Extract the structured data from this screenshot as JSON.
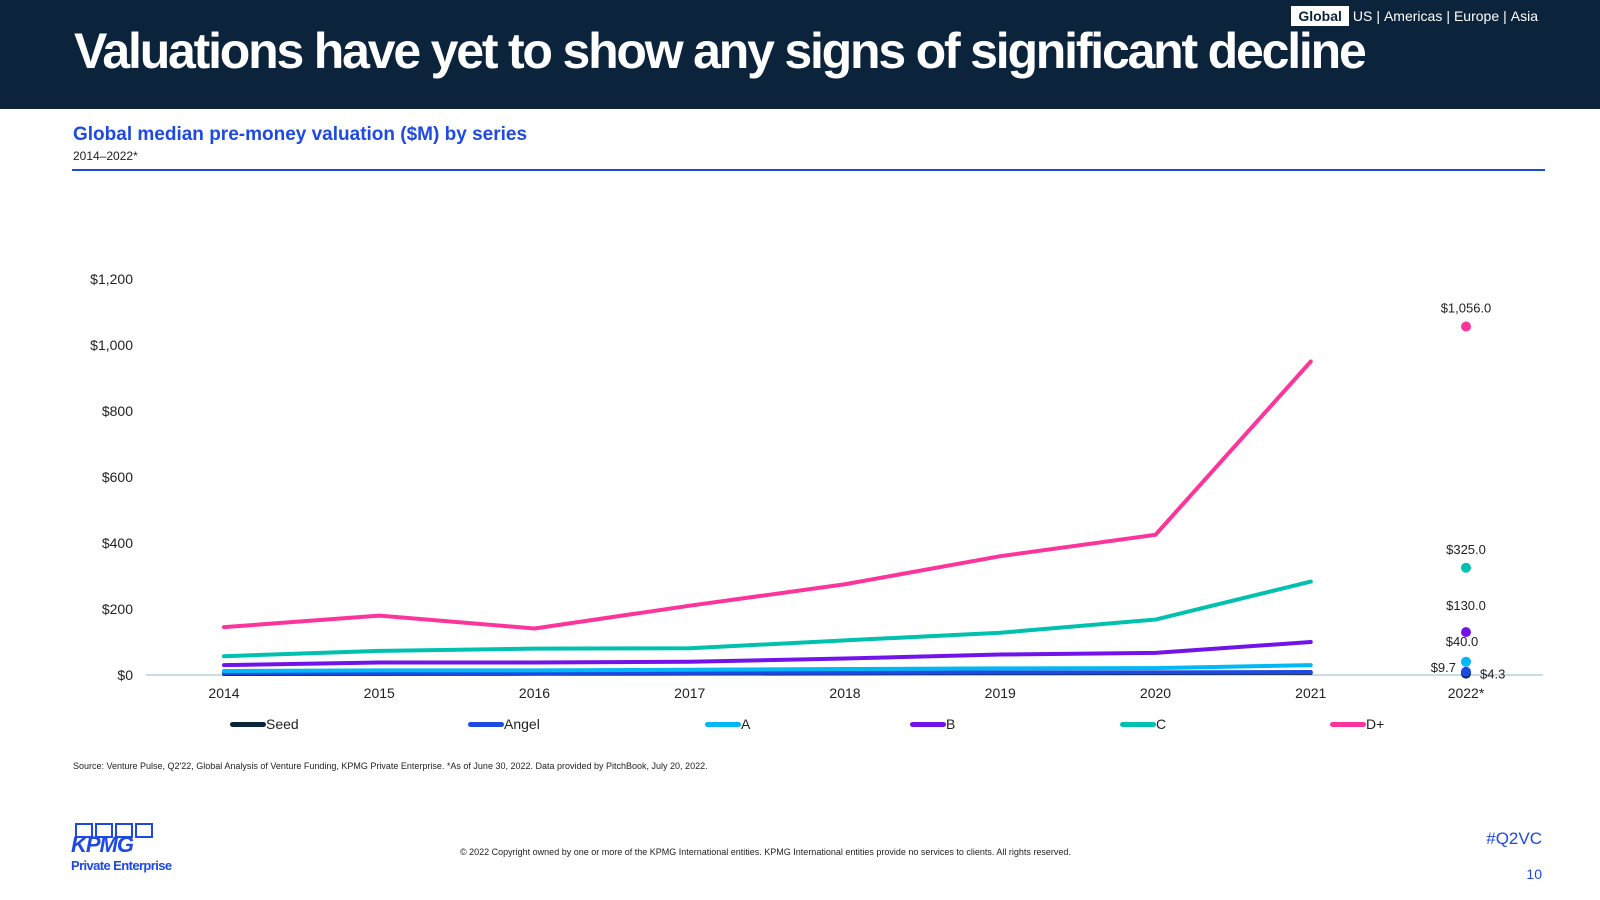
{
  "header": {
    "title": "Valuations have yet to show any signs of significant decline",
    "regions": {
      "selected": "Global",
      "others": [
        "US",
        "Americas",
        "Europe",
        "Asia"
      ],
      "separator": "|"
    }
  },
  "chart_header": {
    "title": "Global median pre-money valuation ($M) by series",
    "subtitle": "2014–2022*"
  },
  "chart_data": {
    "type": "line",
    "title": "Global median pre-money valuation ($M) by series",
    "subtitle": "2014–2022*",
    "categories": [
      "2014",
      "2015",
      "2016",
      "2017",
      "2018",
      "2019",
      "2020",
      "2021",
      "2022*"
    ],
    "ylim": [
      0,
      1200
    ],
    "yticks": [
      0,
      200,
      400,
      600,
      800,
      1000,
      1200
    ],
    "ytick_labels": [
      "$0",
      "$200",
      "$400",
      "$600",
      "$800",
      "$1,000",
      "$1,200"
    ],
    "grid": false,
    "legend_position": "bottom",
    "series": [
      {
        "name": "Seed",
        "color": "#0c233c",
        "values": [
          3,
          3.5,
          4,
          4.5,
          5,
          5.5,
          6,
          6.5,
          4.3
        ],
        "last_label": "$4.3"
      },
      {
        "name": "Angel",
        "color": "#1e49e2",
        "values": [
          5,
          5.5,
          6,
          6.5,
          7,
          7.5,
          8,
          9,
          9.7
        ],
        "last_label": "$9.7"
      },
      {
        "name": "A",
        "color": "#00b8f5",
        "values": [
          12,
          14,
          14,
          16,
          18,
          20,
          21,
          30,
          40.0
        ],
        "last_label": "$40.0"
      },
      {
        "name": "B",
        "color": "#7213ea",
        "values": [
          30,
          38,
          38,
          40,
          50,
          62,
          67,
          100,
          130.0
        ],
        "last_label": "$130.0"
      },
      {
        "name": "C",
        "color": "#00c0ae",
        "values": [
          57,
          73,
          80,
          81,
          105,
          128,
          168,
          283,
          325.0
        ],
        "last_label": "$325.0"
      },
      {
        "name": "D+",
        "color": "#fd349c",
        "values": [
          145,
          180,
          141,
          210,
          275,
          360,
          425,
          950,
          1056.0
        ],
        "last_label": "$1,056.0"
      }
    ]
  },
  "footer": {
    "source": "Source: Venture Pulse, Q2'22, Global Analysis of Venture Funding, KPMG Private Enterprise. *As of June 30, 2022. Data provided by PitchBook, July 20, 2022.",
    "copyright": "© 2022 Copyright owned by one or more of the KPMG International entities. KPMG International entities provide no services to clients. All rights reserved.",
    "logo_word": "KPMG",
    "logo_sub": "Private Enterprise",
    "hashtag": "#Q2VC",
    "page_number": "10"
  }
}
